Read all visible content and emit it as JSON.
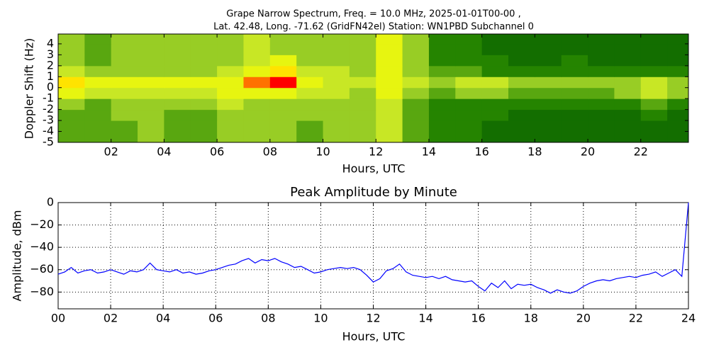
{
  "chart_data": [
    {
      "type": "heatmap",
      "title": "Grape Narrow Spectrum, Freq. = 10.0 MHz, 2025-01-01T00-00 ,",
      "subtitle": "Lat.  42.48, Long. -71.62 (GridFN42el) Station: WN1PBD Subchannel 0",
      "ylabel": "Doppler Shift (Hz)",
      "xlabel": "Hours, UTC",
      "xlim": [
        0,
        23.8
      ],
      "ylim": [
        -5,
        4.9
      ],
      "xticks": [
        {
          "value": 2,
          "label": "02"
        },
        {
          "value": 4,
          "label": "04"
        },
        {
          "value": 6,
          "label": "06"
        },
        {
          "value": 8,
          "label": "08"
        },
        {
          "value": 10,
          "label": "10"
        },
        {
          "value": 12,
          "label": "12"
        },
        {
          "value": 14,
          "label": "14"
        },
        {
          "value": 16,
          "label": "16"
        },
        {
          "value": 18,
          "label": "18"
        },
        {
          "value": 20,
          "label": "20"
        },
        {
          "value": 22,
          "label": "22"
        }
      ],
      "yticks": [
        -5,
        -4,
        -3,
        -2,
        -1,
        0,
        1,
        2,
        3,
        4
      ],
      "xbins": [
        0,
        1,
        2,
        3,
        4,
        5,
        6,
        7,
        8,
        9,
        10,
        11,
        12,
        13,
        14,
        15,
        16,
        17,
        18,
        19,
        20,
        21,
        22,
        23,
        23.8
      ],
      "ybins": [
        -5,
        -4,
        -3,
        -2,
        -1,
        0,
        1,
        2,
        3,
        4,
        4.9
      ],
      "zlim": [
        0,
        9
      ],
      "colors": [
        "#005800",
        "#2a8a00",
        "#b8e030",
        "#ffff00",
        "#ff0000"
      ],
      "z": [
        [
          3,
          3,
          3,
          4,
          3,
          3,
          4,
          4,
          4,
          3,
          4,
          4,
          5,
          3,
          2,
          2,
          1,
          1,
          1,
          1,
          1,
          1,
          1,
          1
        ],
        [
          3,
          3,
          3,
          4,
          3,
          3,
          4,
          4,
          4,
          3,
          4,
          4,
          5,
          3,
          2,
          2,
          1,
          1,
          1,
          1,
          1,
          1,
          1,
          1
        ],
        [
          3,
          3,
          4,
          4,
          3,
          3,
          4,
          4,
          4,
          4,
          4,
          4,
          5,
          3,
          2,
          2,
          2,
          1,
          1,
          1,
          1,
          1,
          2,
          1
        ],
        [
          4,
          3,
          4,
          4,
          4,
          4,
          5,
          4,
          4,
          4,
          4,
          4,
          5,
          3,
          2,
          2,
          2,
          2,
          2,
          2,
          2,
          2,
          3,
          2
        ],
        [
          6,
          5,
          5,
          5,
          5,
          5,
          6,
          6,
          6,
          5,
          5,
          4,
          6,
          4,
          3,
          4,
          4,
          3,
          3,
          3,
          3,
          4,
          5,
          4
        ],
        [
          7,
          6,
          6,
          6,
          6,
          6,
          6,
          8,
          9,
          6,
          5,
          5,
          6,
          5,
          4,
          5,
          5,
          4,
          4,
          4,
          4,
          4,
          5,
          4
        ],
        [
          5,
          4,
          4,
          4,
          4,
          4,
          5,
          6,
          7,
          5,
          5,
          4,
          6,
          4,
          3,
          3,
          2,
          2,
          2,
          2,
          2,
          2,
          2,
          2
        ],
        [
          4,
          3,
          4,
          4,
          4,
          4,
          4,
          5,
          6,
          4,
          4,
          4,
          6,
          4,
          2,
          2,
          2,
          1,
          1,
          2,
          1,
          1,
          1,
          1
        ],
        [
          4,
          3,
          4,
          4,
          4,
          4,
          4,
          5,
          4,
          4,
          4,
          4,
          6,
          4,
          2,
          2,
          1,
          1,
          1,
          1,
          1,
          1,
          1,
          1
        ],
        [
          4,
          3,
          4,
          4,
          4,
          4,
          4,
          5,
          4,
          4,
          4,
          4,
          6,
          4,
          2,
          2,
          1,
          1,
          1,
          1,
          1,
          1,
          1,
          1
        ]
      ]
    },
    {
      "type": "line",
      "title": "Peak Amplitude by Minute",
      "ylabel": "Amplitude, dBm",
      "xlabel": "Hours, UTC",
      "xlim": [
        0,
        24
      ],
      "ylim": [
        -95,
        0
      ],
      "grid": true,
      "xticks": [
        {
          "value": 0,
          "label": "00"
        },
        {
          "value": 2,
          "label": "02"
        },
        {
          "value": 4,
          "label": "04"
        },
        {
          "value": 6,
          "label": "06"
        },
        {
          "value": 8,
          "label": "08"
        },
        {
          "value": 10,
          "label": "10"
        },
        {
          "value": 12,
          "label": "12"
        },
        {
          "value": 14,
          "label": "14"
        },
        {
          "value": 16,
          "label": "16"
        },
        {
          "value": 18,
          "label": "18"
        },
        {
          "value": 20,
          "label": "20"
        },
        {
          "value": 22,
          "label": "22"
        },
        {
          "value": 24,
          "label": "24"
        }
      ],
      "yticks": [
        0,
        {
          "value": -20,
          "label": "−20"
        },
        {
          "value": -40,
          "label": "−40"
        },
        {
          "value": -60,
          "label": "−60"
        },
        {
          "value": -80,
          "label": "−80"
        }
      ],
      "x": [
        0,
        0.25,
        0.5,
        0.75,
        1,
        1.25,
        1.5,
        1.75,
        2,
        2.25,
        2.5,
        2.75,
        3,
        3.25,
        3.5,
        3.75,
        4,
        4.25,
        4.5,
        4.75,
        5,
        5.25,
        5.5,
        5.75,
        6,
        6.25,
        6.5,
        6.75,
        7,
        7.25,
        7.5,
        7.75,
        8,
        8.25,
        8.5,
        8.75,
        9,
        9.25,
        9.5,
        9.75,
        10,
        10.25,
        10.5,
        10.75,
        11,
        11.25,
        11.5,
        11.75,
        12,
        12.25,
        12.5,
        12.75,
        13,
        13.25,
        13.5,
        13.75,
        14,
        14.25,
        14.5,
        14.75,
        15,
        15.25,
        15.5,
        15.75,
        16,
        16.25,
        16.5,
        16.75,
        17,
        17.25,
        17.5,
        17.75,
        18,
        18.25,
        18.5,
        18.75,
        19,
        19.25,
        19.5,
        19.75,
        20,
        20.25,
        20.5,
        20.75,
        21,
        21.25,
        21.5,
        21.75,
        22,
        22.25,
        22.5,
        22.75,
        23,
        23.25,
        23.5,
        23.75,
        24
      ],
      "series": [
        {
          "color": "#0000ff",
          "values": [
            -64,
            -62,
            -58,
            -63,
            -61,
            -60,
            -63,
            -62,
            -60,
            -62,
            -64,
            -61,
            -62,
            -60,
            -54,
            -60,
            -61,
            -62,
            -60,
            -63,
            -62,
            -64,
            -63,
            -61,
            -60,
            -58,
            -56,
            -55,
            -52,
            -50,
            -54,
            -51,
            -52,
            -50,
            -53,
            -55,
            -58,
            -57,
            -60,
            -63,
            -62,
            -60,
            -59,
            -58,
            -59,
            -58,
            -60,
            -65,
            -71,
            -68,
            -61,
            -59,
            -55,
            -62,
            -65,
            -66,
            -67,
            -66,
            -68,
            -66,
            -69,
            -70,
            -71,
            -70,
            -75,
            -79,
            -72,
            -76,
            -70,
            -77,
            -73,
            -74,
            -73,
            -76,
            -78,
            -81,
            -78,
            -80,
            -81,
            -79,
            -75,
            -72,
            -70,
            -69,
            -70,
            -68,
            -67,
            -66,
            -67,
            -65,
            -64,
            -62,
            -66,
            -63,
            -60,
            -66,
            0
          ]
        }
      ]
    }
  ]
}
